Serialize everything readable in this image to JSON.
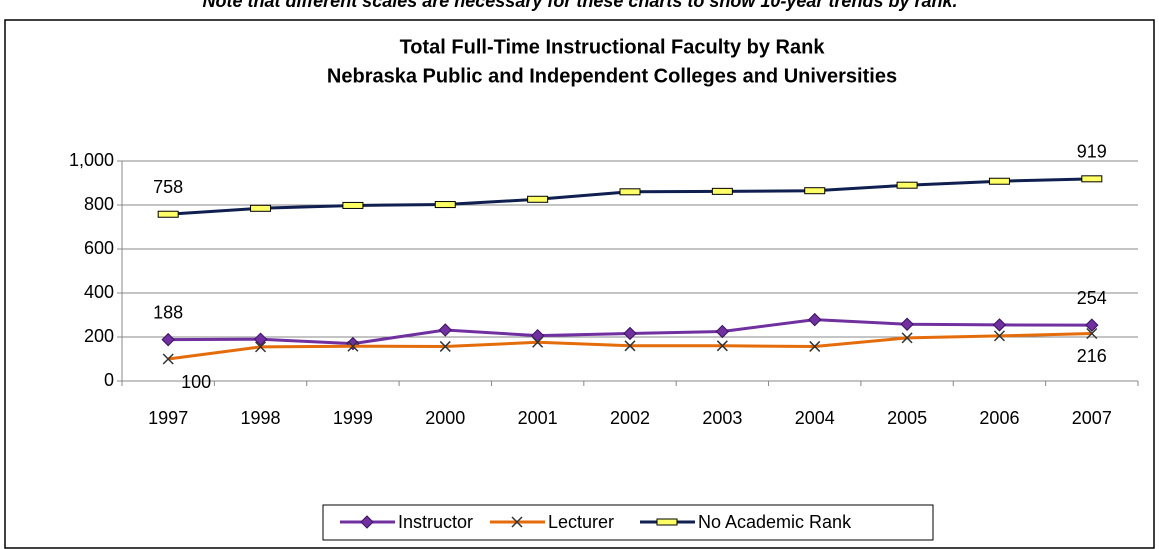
{
  "note": "Note that different scales are necessary for these charts to show 10-year trends by rank.",
  "chart_data": {
    "type": "line",
    "title": [
      "Total Full-Time Instructional Faculty by Rank",
      "Nebraska Public and Independent Colleges and Universities"
    ],
    "categories": [
      "1997",
      "1998",
      "1999",
      "2000",
      "2001",
      "2002",
      "2003",
      "2004",
      "2005",
      "2006",
      "2007"
    ],
    "series": [
      {
        "name": "Instructor",
        "color": "#7030a0",
        "marker": "diamond",
        "values": [
          188,
          190,
          170,
          232,
          206,
          216,
          225,
          279,
          258,
          255,
          254
        ],
        "value_labels": [
          "188",
          null,
          null,
          null,
          null,
          null,
          null,
          null,
          null,
          null,
          "254"
        ]
      },
      {
        "name": "Lecturer",
        "color": "#e46c0a",
        "marker": "x",
        "values": [
          100,
          155,
          158,
          157,
          176,
          160,
          160,
          157,
          196,
          205,
          216
        ],
        "value_labels": [
          "100",
          null,
          null,
          null,
          null,
          null,
          null,
          null,
          null,
          null,
          "216"
        ]
      },
      {
        "name": "No Academic Rank",
        "color": "#0f1f4f",
        "marker": "rect",
        "values": [
          758,
          785,
          798,
          802,
          826,
          860,
          862,
          865,
          890,
          908,
          919
        ],
        "value_labels": [
          "758",
          null,
          null,
          null,
          null,
          null,
          null,
          null,
          null,
          null,
          "919"
        ]
      }
    ],
    "ylim": [
      0,
      1000
    ],
    "yticks": [
      0,
      200,
      400,
      600,
      800,
      {
        "value": 1000,
        "label": "1,000"
      }
    ],
    "grid": true,
    "legend": "bottom"
  }
}
